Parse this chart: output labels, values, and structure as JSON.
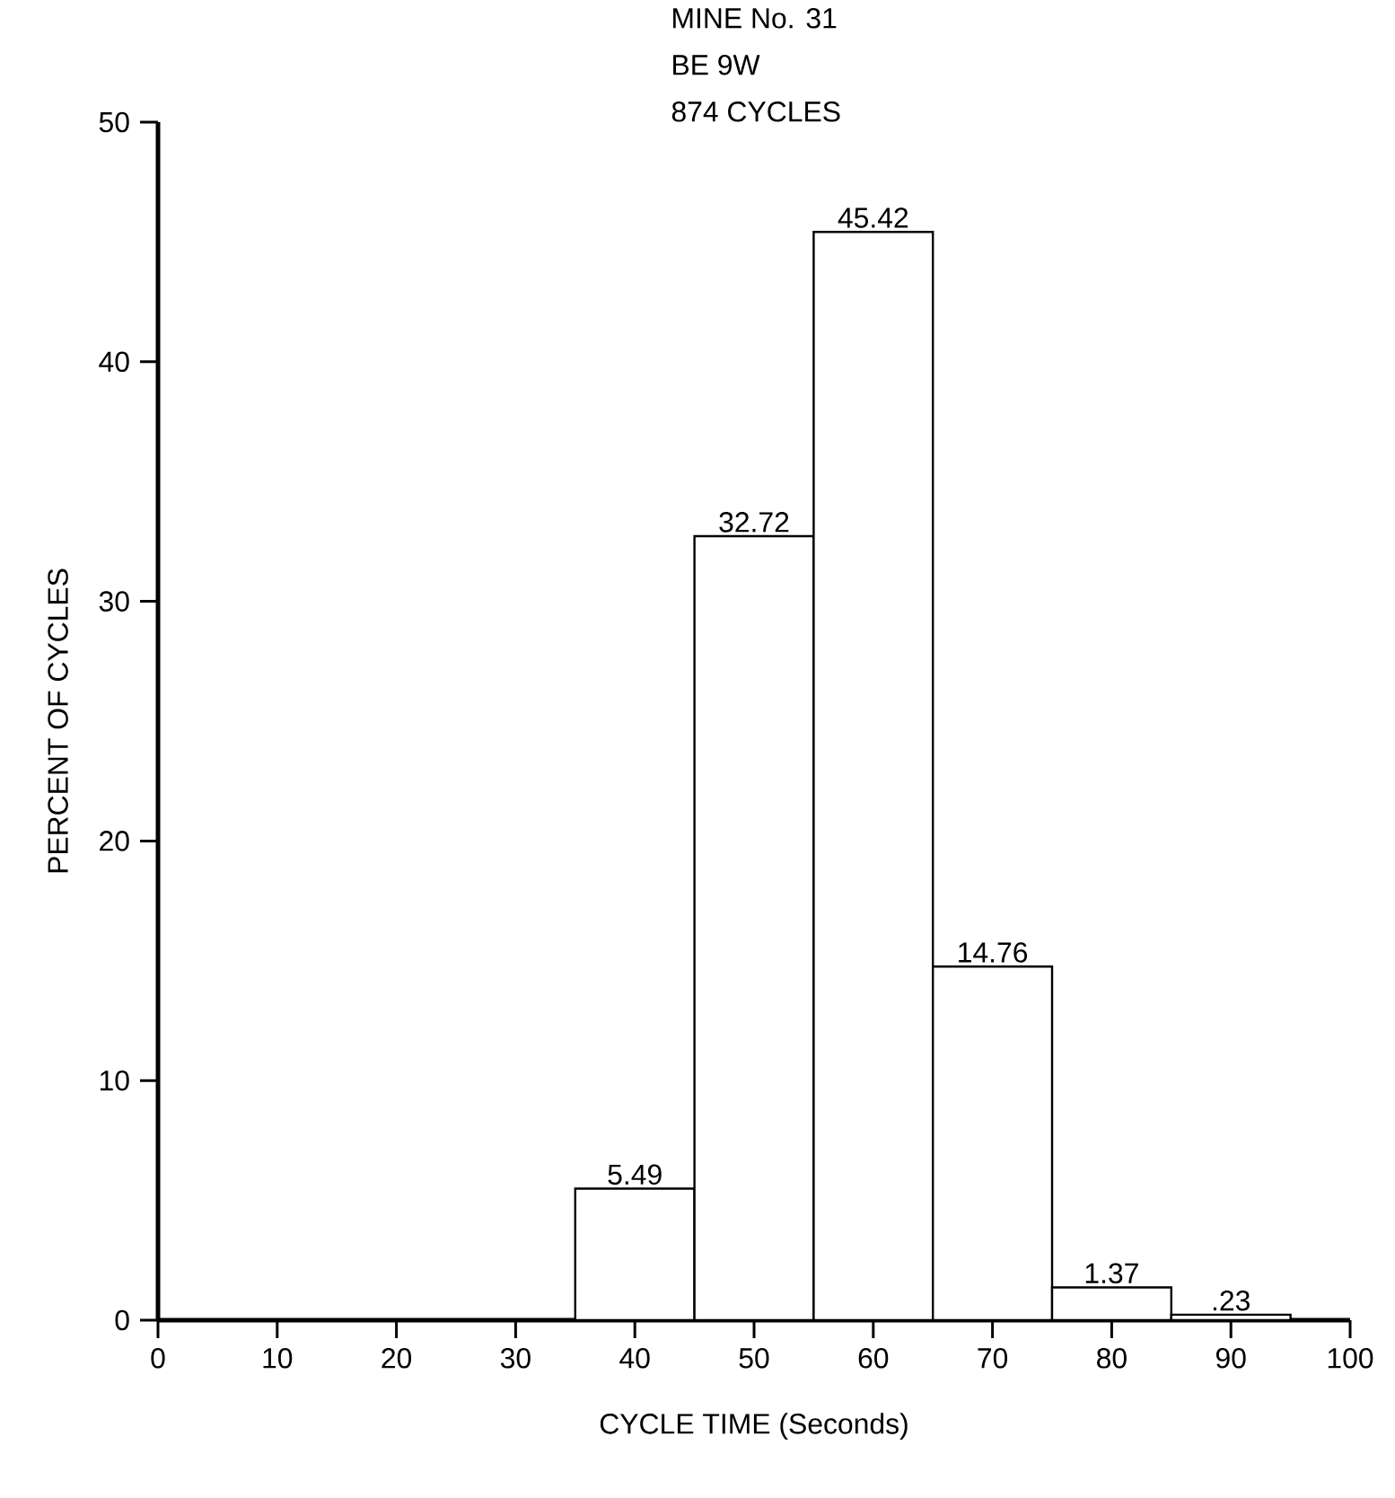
{
  "chart_data": {
    "type": "histogram",
    "title": "MINE No. 31",
    "subtitle": "BE 9W",
    "annotations": [
      "874 CYCLES"
    ],
    "xlabel": "CYCLE TIME (Seconds)",
    "ylabel": "PERCENT OF CYCLES",
    "bins": [
      35,
      45,
      55,
      65,
      75,
      85,
      95
    ],
    "values": [
      5.49,
      32.72,
      45.42,
      14.76,
      1.37,
      0.23
    ],
    "value_labels": [
      "5.49",
      "32.72",
      "45.42",
      "14.76",
      "1.37",
      ".23"
    ],
    "color": "#ffffff",
    "xlim": [
      0,
      100
    ],
    "xticks": [
      0,
      10,
      20,
      30,
      40,
      50,
      60,
      70,
      80,
      90,
      100
    ],
    "ylim": [
      0,
      50
    ],
    "yticks": [
      0,
      10,
      20,
      30,
      40,
      50
    ]
  }
}
